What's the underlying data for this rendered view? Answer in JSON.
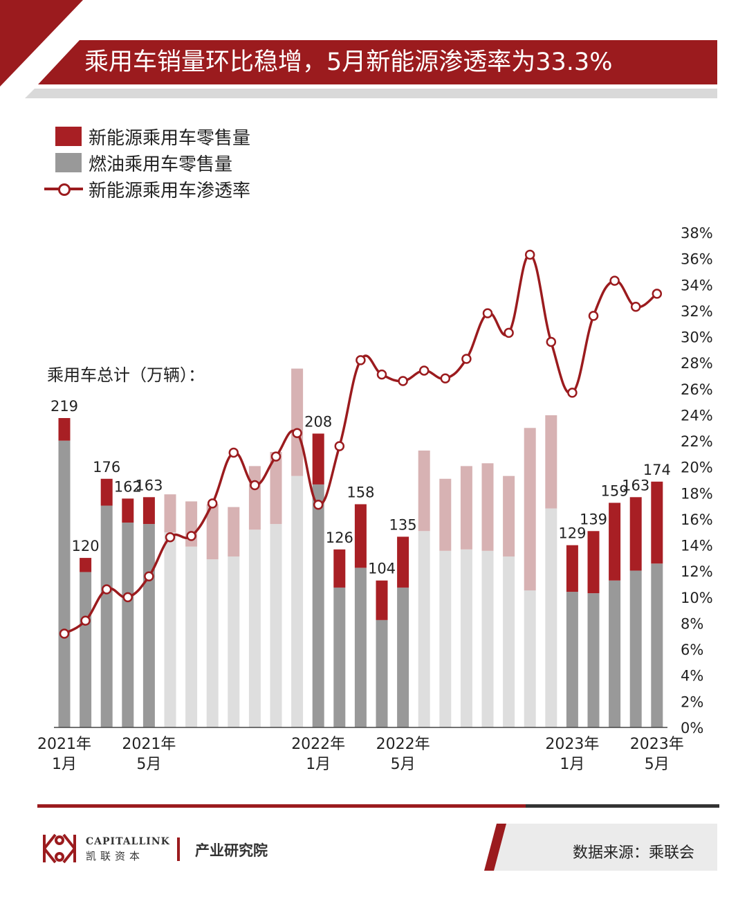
{
  "header": {
    "title": "乘用车销量环比稳增，5月新能源渗透率为33.3%"
  },
  "legend": {
    "nev": "新能源乘用车零售量",
    "ice": "燃油乘用车零售量",
    "rate": "新能源乘用车渗透率"
  },
  "chart_label": "乘用车总计（万辆）：",
  "colors": {
    "nev": "#a81f24",
    "ice": "#999999",
    "nev_faded": "#d7b2b3",
    "ice_faded": "#dedede",
    "line": "#9b1b1e"
  },
  "chart_data": {
    "type": "bar",
    "stacked": true,
    "x_tick_labels": [
      {
        "index": 0,
        "line1": "2021年",
        "line2": "1月"
      },
      {
        "index": 4,
        "line1": "2021年",
        "line2": "5月"
      },
      {
        "index": 12,
        "line1": "2022年",
        "line2": "1月"
      },
      {
        "index": 16,
        "line1": "2022年",
        "line2": "5月"
      },
      {
        "index": 24,
        "line1": "2023年",
        "line2": "1月"
      },
      {
        "index": 28,
        "line1": "2023年",
        "line2": "5月"
      }
    ],
    "categories": [
      "2021-01",
      "2021-02",
      "2021-03",
      "2021-04",
      "2021-05",
      "2021-06",
      "2021-07",
      "2021-08",
      "2021-09",
      "2021-10",
      "2021-11",
      "2021-12",
      "2022-01",
      "2022-02",
      "2022-03",
      "2022-04",
      "2022-05",
      "2022-06",
      "2022-07",
      "2022-08",
      "2022-09",
      "2022-10",
      "2022-11",
      "2022-12",
      "2023-01",
      "2023-02",
      "2023-03",
      "2023-04",
      "2023-05"
    ],
    "highlighted": [
      true,
      true,
      true,
      true,
      true,
      false,
      false,
      false,
      false,
      false,
      false,
      false,
      true,
      true,
      true,
      true,
      true,
      false,
      false,
      false,
      false,
      false,
      false,
      false,
      true,
      true,
      true,
      true,
      true
    ],
    "series": [
      {
        "name": "燃油乘用车零售量",
        "values": [
          203,
          110,
          157,
          145,
          144,
          138,
          128,
          119,
          121,
          140,
          144,
          178,
          172,
          99,
          113,
          76,
          99,
          139,
          125,
          126,
          125,
          121,
          97,
          155,
          96,
          95,
          104,
          111,
          116
        ]
      },
      {
        "name": "新能源乘用车零售量",
        "values": [
          16,
          10,
          19,
          17,
          19,
          27,
          32,
          39,
          35,
          45,
          51,
          76,
          36,
          27,
          45,
          28,
          36,
          57,
          51,
          59,
          62,
          57,
          115,
          66,
          33,
          44,
          55,
          52,
          58
        ]
      }
    ],
    "totals": [
      219,
      120,
      176,
      162,
      163,
      165,
      160,
      158,
      156,
      185,
      195,
      254,
      208,
      126,
      158,
      104,
      135,
      196,
      176,
      185,
      187,
      178,
      212,
      221,
      129,
      139,
      159,
      163,
      174
    ],
    "bar_labels_shown": [
      true,
      true,
      true,
      true,
      true,
      false,
      false,
      false,
      false,
      false,
      false,
      false,
      true,
      true,
      true,
      true,
      true,
      false,
      false,
      false,
      false,
      false,
      false,
      false,
      true,
      true,
      true,
      true,
      true
    ],
    "line_series": {
      "name": "新能源乘用车渗透率",
      "axis": "right",
      "unit": "%",
      "values": [
        7.2,
        8.2,
        10.6,
        10.0,
        11.6,
        14.6,
        14.7,
        17.2,
        21.1,
        18.6,
        20.8,
        22.6,
        17.1,
        21.6,
        28.2,
        27.1,
        26.6,
        27.4,
        26.8,
        28.3,
        31.8,
        30.3,
        36.3,
        29.6,
        25.7,
        31.6,
        34.3,
        32.3,
        33.3
      ]
    },
    "y_left": {
      "label": "乘用车总计（万辆）",
      "ylim": [
        0,
        265
      ]
    },
    "y_right": {
      "ylim": [
        0,
        38
      ],
      "ticks": [
        0,
        2,
        4,
        6,
        8,
        10,
        12,
        14,
        16,
        18,
        20,
        22,
        24,
        26,
        28,
        30,
        32,
        34,
        36,
        38
      ],
      "tick_labels": [
        "0%",
        "2%",
        "4%",
        "6%",
        "8%",
        "10%",
        "12%",
        "14%",
        "16%",
        "18%",
        "20%",
        "22%",
        "24%",
        "26%",
        "28%",
        "30%",
        "32%",
        "34%",
        "36%",
        "38%"
      ]
    }
  },
  "footer": {
    "brand_en": "CAPITALLINK",
    "brand_cn": "凯联资本",
    "dept": "产业研究院",
    "source": "数据来源：乘联会"
  }
}
